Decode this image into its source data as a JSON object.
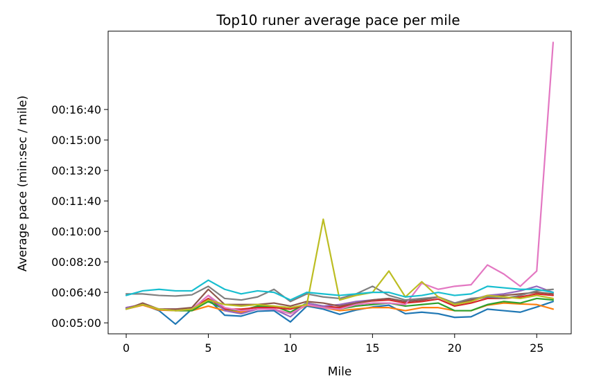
{
  "chart_data": {
    "type": "line",
    "title": "Top10 runer average pace per mile",
    "xlabel": "Mile",
    "ylabel": "Average pace (min:sec / mile)",
    "xlim": [
      -1.1,
      27.1
    ],
    "ylim": [
      264,
      1257
    ],
    "xticks": [
      0,
      5,
      10,
      15,
      20,
      25
    ],
    "xtick_labels": [
      "0",
      "5",
      "10",
      "15",
      "20",
      "25"
    ],
    "yticks": [
      300,
      400,
      500,
      600,
      700,
      800,
      900,
      1000
    ],
    "ytick_labels": [
      "00:05:00",
      "00:06:40",
      "00:08:20",
      "00:10:00",
      "00:11:40",
      "00:13:20",
      "00:15:00",
      "00:16:40"
    ],
    "grid": false,
    "legend": "none",
    "x": [
      0,
      1,
      2,
      3,
      4,
      5,
      6,
      7,
      8,
      9,
      10,
      11,
      12,
      13,
      14,
      15,
      16,
      17,
      18,
      19,
      20,
      21,
      22,
      23,
      24,
      25,
      26
    ],
    "series": [
      {
        "color": "#1f77b4",
        "values": [
          348,
          360,
          340,
          296,
          345,
          378,
          325,
          322,
          338,
          340,
          303,
          355,
          345,
          328,
          342,
          352,
          358,
          330,
          335,
          330,
          318,
          320,
          345,
          340,
          335,
          352,
          370
        ]
      },
      {
        "color": "#ff7f0e",
        "values": [
          345,
          358,
          342,
          340,
          340,
          355,
          340,
          335,
          345,
          345,
          330,
          358,
          350,
          340,
          345,
          350,
          350,
          340,
          350,
          350,
          340,
          340,
          358,
          365,
          362,
          360,
          345
        ]
      },
      {
        "color": "#2ca02c",
        "values": [
          345,
          360,
          345,
          340,
          340,
          370,
          345,
          340,
          355,
          355,
          335,
          365,
          355,
          345,
          355,
          360,
          365,
          355,
          360,
          365,
          340,
          340,
          360,
          370,
          365,
          380,
          375
        ]
      },
      {
        "color": "#d62728",
        "values": [
          350,
          360,
          345,
          345,
          345,
          380,
          345,
          345,
          350,
          350,
          345,
          360,
          355,
          350,
          365,
          372,
          375,
          365,
          370,
          378,
          355,
          365,
          380,
          380,
          385,
          395,
          390
        ]
      },
      {
        "color": "#9467bd",
        "values": [
          350,
          360,
          345,
          345,
          345,
          390,
          340,
          330,
          345,
          345,
          320,
          365,
          355,
          360,
          370,
          375,
          380,
          370,
          375,
          385,
          360,
          375,
          390,
          395,
          405,
          420,
          400
        ]
      },
      {
        "color": "#8c564b",
        "values": [
          345,
          365,
          345,
          345,
          350,
          410,
          360,
          360,
          360,
          365,
          355,
          370,
          365,
          355,
          365,
          375,
          380,
          370,
          375,
          385,
          365,
          375,
          385,
          390,
          395,
          400,
          395
        ]
      },
      {
        "color": "#e377c2",
        "values": [
          345,
          360,
          345,
          340,
          345,
          390,
          350,
          340,
          345,
          345,
          330,
          360,
          350,
          345,
          360,
          365,
          365,
          360,
          430,
          410,
          420,
          425,
          490,
          460,
          420,
          470,
          1220
        ]
      },
      {
        "color": "#7f7f7f",
        "values": [
          395,
          395,
          390,
          388,
          392,
          420,
          380,
          375,
          385,
          410,
          370,
          395,
          385,
          380,
          395,
          420,
          390,
          375,
          380,
          385,
          365,
          380,
          385,
          380,
          390,
          405,
          410
        ]
      },
      {
        "color": "#bcbd22",
        "values": [
          345,
          360,
          345,
          340,
          345,
          375,
          360,
          355,
          360,
          355,
          350,
          360,
          640,
          375,
          390,
          400,
          470,
          385,
          435,
          385,
          360,
          370,
          390,
          385,
          380,
          390,
          380
        ]
      },
      {
        "color": "#17becf",
        "values": [
          390,
          405,
          410,
          405,
          405,
          440,
          410,
          395,
          405,
          400,
          375,
          400,
          395,
          390,
          395,
          400,
          400,
          385,
          390,
          400,
          390,
          395,
          420,
          415,
          410,
          410,
          400
        ]
      }
    ]
  }
}
